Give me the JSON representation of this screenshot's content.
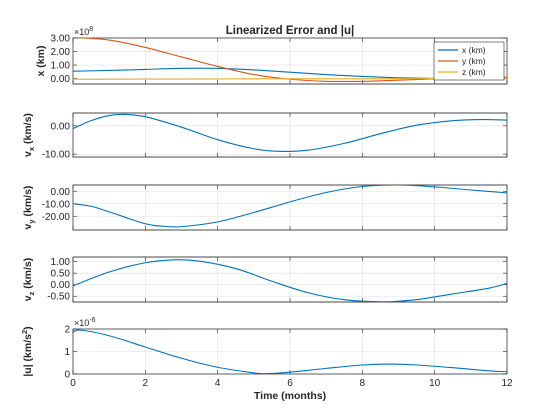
{
  "chart_data": [
    {
      "type": "line",
      "title": "Linearized Error and |u|",
      "ylabel": "x (km)",
      "exponent": "8",
      "xlim": [
        0,
        12
      ],
      "ylim": [
        -0.4,
        3.0
      ],
      "yticks": [
        0,
        1,
        2,
        3
      ],
      "ytick_labels": [
        "0.00",
        "1.00",
        "2.00",
        "3.00"
      ],
      "grid": true,
      "legend": "top-right",
      "x": [
        0,
        1,
        2,
        3,
        4,
        5,
        6,
        7,
        8,
        9,
        10,
        11,
        12
      ],
      "series": [
        {
          "name": "x (km)",
          "color": "#0072BD",
          "values": [
            0.55,
            0.6,
            0.68,
            0.76,
            0.76,
            0.64,
            0.47,
            0.3,
            0.16,
            0.06,
            0.01,
            -0.01,
            0.0
          ]
        },
        {
          "name": "y (km)",
          "color": "#D95319",
          "values": [
            3.05,
            2.85,
            2.3,
            1.6,
            0.9,
            0.3,
            -0.05,
            -0.2,
            -0.2,
            -0.12,
            -0.02,
            0.05,
            0.1
          ]
        },
        {
          "name": "z (km)",
          "color": "#EDB120",
          "values": [
            -0.05,
            -0.05,
            -0.04,
            -0.04,
            -0.03,
            -0.02,
            -0.02,
            -0.02,
            -0.02,
            -0.01,
            0.0,
            0.0,
            0.0
          ]
        }
      ]
    },
    {
      "type": "line",
      "ylabel_main": "v",
      "ylabel_sub": "x",
      "ylabel_tail": " (km/s)",
      "xlim": [
        0,
        12
      ],
      "ylim": [
        -11,
        4.5
      ],
      "yticks": [
        -10,
        0
      ],
      "ytick_labels": [
        "-10.00",
        "0.00"
      ],
      "grid": true,
      "x": [
        0,
        0.5,
        1,
        1.4,
        2,
        3,
        4,
        5,
        5.7,
        6.5,
        7.5,
        8.5,
        9.5,
        10.5,
        11.3,
        12
      ],
      "series": [
        {
          "name": "",
          "color": "#0072BD",
          "values": [
            -1.0,
            1.8,
            3.6,
            4.0,
            3.2,
            -0.5,
            -4.9,
            -8.1,
            -9.0,
            -8.6,
            -6.2,
            -2.8,
            0.2,
            1.8,
            2.2,
            2.0
          ]
        }
      ]
    },
    {
      "type": "line",
      "ylabel_main": "v",
      "ylabel_sub": "y",
      "ylabel_tail": " (km/s)",
      "xlim": [
        0,
        12
      ],
      "ylim": [
        -31,
        5
      ],
      "yticks": [
        -20,
        -10,
        0
      ],
      "ytick_labels": [
        "-20.00",
        "-10.00",
        "0.00"
      ],
      "grid": true,
      "x": [
        0,
        0.5,
        1,
        2,
        2.5,
        3,
        4,
        5,
        6,
        7,
        8,
        9,
        10,
        11,
        12
      ],
      "series": [
        {
          "name": "",
          "color": "#0072BD",
          "values": [
            -10.0,
            -12.0,
            -16.5,
            -26.0,
            -28.0,
            -28.3,
            -24.5,
            -17.0,
            -8.5,
            -1.0,
            3.8,
            5.0,
            3.5,
            1.0,
            -1.3
          ]
        }
      ]
    },
    {
      "type": "line",
      "ylabel_main": "v",
      "ylabel_sub": "z",
      "ylabel_tail": " (km/s)",
      "xlim": [
        0,
        12
      ],
      "ylim": [
        -0.75,
        1.2
      ],
      "yticks": [
        -0.5,
        0,
        0.5,
        1
      ],
      "ytick_labels": [
        "-0.50",
        "0.00",
        "0.50",
        "1.00"
      ],
      "grid": true,
      "x": [
        0,
        1,
        2,
        2.8,
        3.5,
        4.5,
        5.5,
        6.5,
        7.5,
        8.6,
        9.5,
        10.5,
        11.5,
        12
      ],
      "series": [
        {
          "name": "",
          "color": "#0072BD",
          "values": [
            -0.05,
            0.55,
            0.95,
            1.08,
            1.02,
            0.7,
            0.15,
            -0.35,
            -0.65,
            -0.74,
            -0.65,
            -0.4,
            -0.15,
            0.05
          ]
        }
      ]
    },
    {
      "type": "line",
      "ylabel_main": "|u| (km/s",
      "ylabel_sup": "2",
      "ylabel_tail": ")",
      "exponent": "-6",
      "xlabel": "Time (months)",
      "xlim": [
        0,
        12
      ],
      "xticks": [
        0,
        2,
        4,
        6,
        8,
        10,
        12
      ],
      "ylim": [
        0,
        2
      ],
      "yticks": [
        0,
        1,
        2
      ],
      "ytick_labels": [
        "0",
        "1",
        "2"
      ],
      "grid": true,
      "x": [
        0,
        0.2,
        1,
        2,
        3,
        4,
        5,
        5.4,
        6,
        7,
        8,
        8.8,
        9.5,
        10.5,
        11.5,
        12
      ],
      "series": [
        {
          "name": "",
          "color": "#0072BD",
          "values": [
            1.85,
            1.95,
            1.7,
            1.2,
            0.7,
            0.3,
            0.05,
            0.02,
            0.08,
            0.25,
            0.4,
            0.44,
            0.4,
            0.28,
            0.14,
            0.1
          ]
        }
      ]
    }
  ]
}
